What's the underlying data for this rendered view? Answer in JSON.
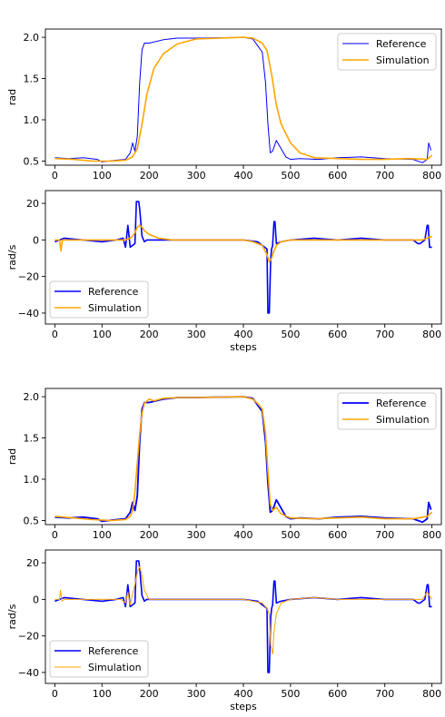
{
  "colors": {
    "reference": "#0000ff",
    "simulation": "#ffa500"
  },
  "chart_data": [
    {
      "type": "line",
      "xlabel": "",
      "ylabel": "rad",
      "xlim": [
        -20,
        820
      ],
      "ylim": [
        0.45,
        2.1
      ],
      "xticks": [
        0,
        100,
        200,
        300,
        400,
        500,
        600,
        700,
        800
      ],
      "yticks": [
        0.5,
        1.0,
        1.5,
        2.0
      ],
      "ytick_labels": [
        "0.5",
        "1.0",
        "1.5",
        "2.0"
      ],
      "legend": "top-right",
      "series": [
        {
          "name": "Reference",
          "color": "#0000ff",
          "x": [
            0,
            30,
            60,
            90,
            100,
            130,
            150,
            160,
            165,
            170,
            175,
            180,
            185,
            190,
            200,
            230,
            260,
            300,
            400,
            420,
            430,
            440,
            447,
            452,
            457,
            462,
            470,
            480,
            490,
            500,
            520,
            560,
            600,
            650,
            700,
            760,
            780,
            790,
            793,
            798
          ],
          "y": [
            0.54,
            0.53,
            0.54,
            0.52,
            0.49,
            0.51,
            0.52,
            0.6,
            0.72,
            0.62,
            0.8,
            1.45,
            1.85,
            1.93,
            1.93,
            1.97,
            1.99,
            1.99,
            2.0,
            1.98,
            1.9,
            1.82,
            1.45,
            0.95,
            0.6,
            0.62,
            0.75,
            0.65,
            0.55,
            0.52,
            0.53,
            0.52,
            0.54,
            0.55,
            0.53,
            0.52,
            0.48,
            0.52,
            0.72,
            0.63
          ]
        },
        {
          "name": "Simulation",
          "color": "#ffa500",
          "x": [
            0,
            40,
            80,
            120,
            150,
            165,
            175,
            185,
            195,
            210,
            230,
            260,
            300,
            350,
            400,
            420,
            430,
            440,
            450,
            460,
            470,
            480,
            500,
            520,
            550,
            600,
            650,
            700,
            750,
            790,
            800
          ],
          "y": [
            0.53,
            0.52,
            0.5,
            0.5,
            0.51,
            0.55,
            0.65,
            0.95,
            1.3,
            1.62,
            1.8,
            1.92,
            1.98,
            1.99,
            2.0,
            1.99,
            1.96,
            1.93,
            1.84,
            1.55,
            1.18,
            0.95,
            0.72,
            0.6,
            0.54,
            0.53,
            0.52,
            0.52,
            0.53,
            0.52,
            0.57
          ]
        }
      ]
    },
    {
      "type": "line",
      "xlabel": "steps",
      "ylabel": "rad/s",
      "xlim": [
        -20,
        820
      ],
      "ylim": [
        -46,
        27
      ],
      "xticks": [
        0,
        100,
        200,
        300,
        400,
        500,
        600,
        700,
        800
      ],
      "yticks": [
        -40,
        -20,
        0,
        20
      ],
      "ytick_labels": [
        "−40",
        "−20",
        "0",
        "20"
      ],
      "legend": "lower-left",
      "series": [
        {
          "name": "Reference",
          "color": "#0000ff",
          "x": [
            0,
            20,
            60,
            100,
            130,
            145,
            150,
            155,
            160,
            165,
            170,
            173,
            178,
            180,
            185,
            190,
            195,
            200,
            230,
            300,
            400,
            430,
            440,
            450,
            452,
            455,
            458,
            460,
            462,
            465,
            467,
            470,
            480,
            500,
            550,
            600,
            650,
            700,
            760,
            770,
            775,
            780,
            785,
            790,
            792,
            795,
            800
          ],
          "y": [
            -1,
            1,
            0,
            -1,
            0,
            1,
            -4,
            8,
            -4,
            -3,
            -2,
            21,
            21,
            17,
            2,
            -1,
            0,
            0,
            0,
            0,
            0,
            -1,
            -3,
            -5,
            -40,
            -40,
            -10,
            -5,
            -3,
            10,
            10,
            -2,
            -1,
            0,
            1,
            0,
            1,
            0,
            0,
            -2,
            -2,
            -1,
            0,
            8,
            8,
            -4,
            -4
          ]
        },
        {
          "name": "Simulation",
          "color": "#ffa500",
          "x": [
            0,
            10,
            13,
            16,
            20,
            60,
            100,
            150,
            160,
            165,
            170,
            175,
            180,
            185,
            190,
            200,
            220,
            250,
            300,
            400,
            420,
            440,
            450,
            455,
            460,
            465,
            470,
            480,
            500,
            550,
            600,
            700,
            780,
            790,
            800
          ],
          "y": [
            0,
            0,
            -6,
            0,
            0,
            0,
            0,
            0,
            1,
            2,
            4,
            7,
            8,
            7,
            5,
            3,
            1,
            0,
            0,
            0,
            -1,
            -3,
            -8,
            -12,
            -10,
            -6,
            -3,
            -1,
            0,
            0,
            0,
            0,
            0,
            1,
            2
          ]
        }
      ]
    },
    {
      "type": "line",
      "xlabel": "",
      "ylabel": "rad",
      "xlim": [
        -20,
        820
      ],
      "ylim": [
        0.45,
        2.1
      ],
      "xticks": [
        0,
        100,
        200,
        300,
        400,
        500,
        600,
        700,
        800
      ],
      "yticks": [
        0.5,
        1.0,
        1.5,
        2.0
      ],
      "ytick_labels": [
        "0.5",
        "1.0",
        "1.5",
        "2.0"
      ],
      "legend": "top-right",
      "series": [
        {
          "name": "Reference",
          "color": "#0000ff",
          "x": [
            0,
            30,
            60,
            90,
            100,
            130,
            150,
            160,
            165,
            170,
            175,
            180,
            185,
            190,
            200,
            230,
            260,
            300,
            400,
            420,
            430,
            440,
            447,
            452,
            457,
            462,
            470,
            480,
            490,
            500,
            520,
            560,
            600,
            650,
            700,
            760,
            780,
            790,
            793,
            798
          ],
          "y": [
            0.54,
            0.53,
            0.54,
            0.52,
            0.49,
            0.51,
            0.52,
            0.6,
            0.72,
            0.62,
            0.8,
            1.45,
            1.85,
            1.93,
            1.93,
            1.97,
            1.99,
            1.99,
            2.0,
            1.98,
            1.9,
            1.82,
            1.45,
            0.95,
            0.6,
            0.62,
            0.75,
            0.65,
            0.55,
            0.52,
            0.53,
            0.52,
            0.54,
            0.55,
            0.53,
            0.52,
            0.48,
            0.52,
            0.72,
            0.63
          ]
        },
        {
          "name": "Simulation",
          "color": "#ffa500",
          "x": [
            0,
            40,
            80,
            120,
            150,
            160,
            165,
            170,
            175,
            180,
            185,
            190,
            200,
            210,
            230,
            260,
            300,
            400,
            420,
            430,
            440,
            447,
            452,
            457,
            462,
            470,
            480,
            500,
            550,
            600,
            650,
            700,
            760,
            790,
            800
          ],
          "y": [
            0.55,
            0.53,
            0.51,
            0.5,
            0.51,
            0.55,
            0.62,
            0.85,
            1.2,
            1.55,
            1.8,
            1.92,
            1.97,
            1.95,
            1.98,
            1.99,
            1.99,
            2.0,
            1.97,
            1.92,
            1.85,
            1.55,
            1.1,
            0.7,
            0.62,
            0.66,
            0.58,
            0.53,
            0.52,
            0.53,
            0.54,
            0.52,
            0.52,
            0.55,
            0.6
          ]
        }
      ]
    },
    {
      "type": "line",
      "xlabel": "steps",
      "ylabel": "rad/s",
      "xlim": [
        -20,
        820
      ],
      "ylim": [
        -46,
        27
      ],
      "xticks": [
        0,
        100,
        200,
        300,
        400,
        500,
        600,
        700,
        800
      ],
      "yticks": [
        -40,
        -20,
        0,
        20
      ],
      "ytick_labels": [
        "−40",
        "−20",
        "0",
        "20"
      ],
      "legend": "lower-left",
      "series": [
        {
          "name": "Reference",
          "color": "#0000ff",
          "x": [
            0,
            20,
            60,
            100,
            130,
            145,
            150,
            155,
            160,
            165,
            170,
            173,
            178,
            180,
            185,
            190,
            195,
            200,
            230,
            300,
            400,
            430,
            440,
            450,
            452,
            455,
            458,
            460,
            462,
            465,
            467,
            470,
            480,
            500,
            550,
            600,
            650,
            700,
            760,
            770,
            775,
            780,
            785,
            790,
            792,
            795,
            800
          ],
          "y": [
            -1,
            1,
            0,
            -1,
            0,
            1,
            -4,
            8,
            -4,
            -3,
            -2,
            21,
            21,
            17,
            2,
            -1,
            0,
            0,
            0,
            0,
            0,
            -1,
            -3,
            -5,
            -40,
            -40,
            -10,
            -5,
            -3,
            10,
            10,
            -2,
            -1,
            0,
            1,
            0,
            1,
            0,
            0,
            -2,
            -2,
            -1,
            0,
            8,
            8,
            -4,
            -4
          ]
        },
        {
          "name": "Simulation",
          "color": "#ffa500",
          "x": [
            0,
            10,
            12,
            15,
            20,
            60,
            100,
            140,
            150,
            155,
            160,
            165,
            170,
            175,
            180,
            185,
            190,
            200,
            230,
            300,
            400,
            440,
            450,
            455,
            458,
            462,
            465,
            470,
            480,
            500,
            550,
            600,
            700,
            780,
            790,
            795,
            800
          ],
          "y": [
            0,
            0,
            5,
            -1,
            0,
            0,
            0,
            0,
            -2,
            4,
            -3,
            3,
            8,
            15,
            18,
            13,
            5,
            0,
            0,
            0,
            0,
            -2,
            -5,
            -8,
            -25,
            -30,
            -18,
            -8,
            -2,
            0,
            1,
            0,
            0,
            0,
            4,
            2,
            0
          ]
        }
      ]
    }
  ]
}
